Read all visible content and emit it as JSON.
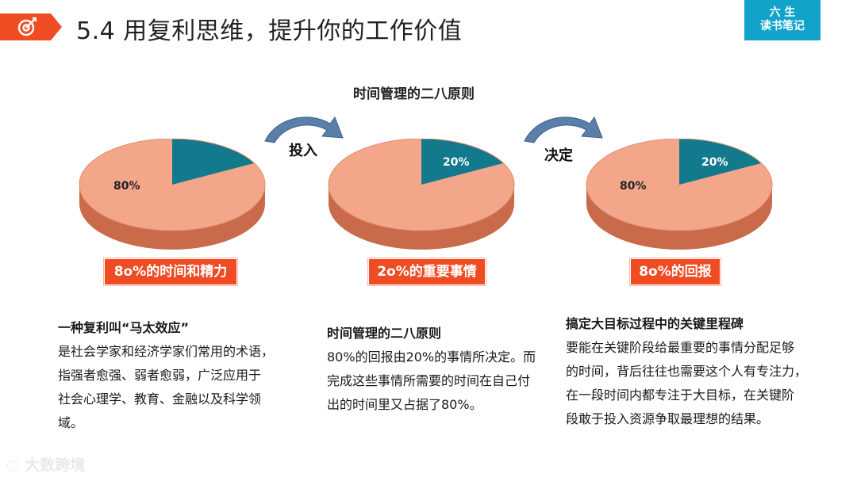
{
  "header": {
    "title": "5.4 用复利思维，提升你的工作价值",
    "brand_line1": "六 生",
    "brand_line2": "读书笔记",
    "badge_icon": "target-icon",
    "accent": "#ef4c24",
    "brand_color": "#12a3c9"
  },
  "diagram": {
    "title": "时间管理的二八原则",
    "pies": [
      {
        "large_label": "80%",
        "small_label": "",
        "tag": "8o%的时间和精力",
        "large_share": 0.8
      },
      {
        "large_label": "",
        "small_label": "20%",
        "tag": "2o%的重要事情",
        "large_share": 0.8
      },
      {
        "large_label": "80%",
        "small_label": "20%",
        "tag": "8o%的回报",
        "large_share": 0.8
      }
    ],
    "arrows": [
      {
        "label": "投入",
        "icon": "curved-arrow-icon"
      },
      {
        "label": "决定",
        "icon": "curved-arrow-icon"
      }
    ],
    "colors": {
      "large": "#f3a68a",
      "small": "#127a8c",
      "tag": "#ef4c24"
    }
  },
  "columns": [
    {
      "title": "一种复利叫“马太效应”",
      "lines": [
        "是社会学家和经济学家们常用的术语，",
        "指强者愈强、弱者愈弱，广泛应用于",
        "社会心理学、教育、金融以及科学领",
        "域。"
      ]
    },
    {
      "title": "时间管理的二八原则",
      "lines": [
        "80%的回报由20%的事情所决定。而",
        "完成这些事情所需要的时间在自己付",
        "出的时间里又占据了80%。"
      ]
    },
    {
      "title": "搞定大目标过程中的关键里程碑",
      "lines": [
        "要能在关键阶段给最重要的事情分配足够",
        "的时间，背后往往也需要这个人有专注力，",
        "在一段时间内都专注于大目标，在关键阶",
        "段敢于投入资源争取最理想的结果。"
      ]
    }
  ],
  "watermark": "大数跨境"
}
